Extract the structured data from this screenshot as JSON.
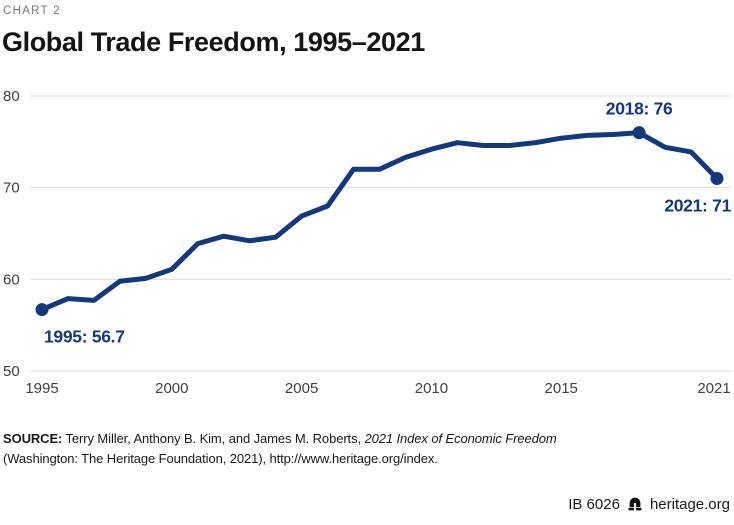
{
  "page": {
    "kicker": "CHART 2",
    "title": "Global Trade Freedom, 1995–2021"
  },
  "chart_data": {
    "type": "line",
    "title": "Global Trade Freedom, 1995–2021",
    "x": [
      1995,
      1996,
      1997,
      1998,
      1999,
      2000,
      2001,
      2002,
      2003,
      2004,
      2005,
      2006,
      2007,
      2008,
      2009,
      2010,
      2011,
      2012,
      2013,
      2014,
      2015,
      2016,
      2017,
      2018,
      2019,
      2020,
      2021
    ],
    "values": [
      56.7,
      57.9,
      57.7,
      59.8,
      60.1,
      61.1,
      63.9,
      64.7,
      64.2,
      64.6,
      66.9,
      68.0,
      72.0,
      72.0,
      73.3,
      74.2,
      74.9,
      74.6,
      74.6,
      74.9,
      75.4,
      75.7,
      75.8,
      76.0,
      74.4,
      73.9,
      71.0
    ],
    "ylim": [
      50,
      80
    ],
    "yticks": [
      80,
      70,
      60,
      50
    ],
    "xticks": [
      1995,
      2000,
      2005,
      2010,
      2015,
      2021
    ],
    "grid": "horizontal",
    "legend": "none",
    "line_color": "#14387E",
    "grid_color": "#dcdcdc",
    "tick_color": "#414141",
    "markers": [
      1995,
      2018,
      2021
    ],
    "annotations": [
      {
        "x": 1995,
        "y": 56.7,
        "label": "1995: 56.7",
        "placement": "below-start"
      },
      {
        "x": 2018,
        "y": 76,
        "label": "2018: 76",
        "placement": "above-middle"
      },
      {
        "x": 2021,
        "y": 71,
        "label": "2021: 71",
        "placement": "below-end"
      }
    ]
  },
  "source": {
    "label": "SOURCE:",
    "text_before_italic": " Terry Miller, Anthony B. Kim, and James M. Roberts, ",
    "italic": "2021 Index of Economic Freedom",
    "line2": "(Washington: The Heritage Foundation, 2021), http://www.heritage.org/index."
  },
  "footer": {
    "id": "IB 6026",
    "brand": "heritage.org"
  }
}
